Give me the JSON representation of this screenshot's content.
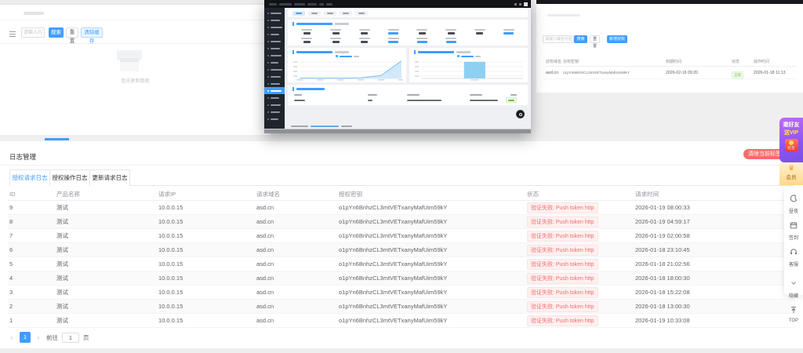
{
  "page": {
    "background": "#efefef",
    "accent": "#409eff",
    "danger": "#f56c6c",
    "success": "#67c23a"
  },
  "left_window": {
    "search_placeholder": "请输入内容",
    "search_button": "搜索",
    "reset_button": "重置",
    "clear_button": "清除缓存",
    "empty_text": "暂无更新数据"
  },
  "right_window": {
    "search_placeholder": "请输入域名内容",
    "search_button": "搜索",
    "reset_button": "重置",
    "add_button": "新增授权",
    "table": {
      "headers": [
        "授权域名",
        "授权密钥",
        "到期时间",
        "状态",
        "操作时间"
      ],
      "row": {
        "domain": "asd.cn",
        "key": "o1pYn6BnhzCL3mtVETxanyMafUim59kY",
        "expire_time": "2026-02-16 09:20",
        "status": "正常",
        "op_time": "2026-01-18 11:13"
      }
    }
  },
  "dashboard_window": {
    "skeleton": {
      "titlebar_bars": [
        10,
        16,
        14,
        12,
        6,
        8
      ],
      "sidebar_widths": [
        14,
        12,
        15,
        11,
        13,
        12,
        14,
        10,
        15,
        13,
        12,
        14,
        11,
        13,
        12,
        10
      ],
      "active_item": 11,
      "top_tabs": 5,
      "stat_cols_row1": 8,
      "stat_cols_row2": 6,
      "blue_row1": [
        3,
        7
      ],
      "blue_row2": [
        3,
        4,
        5
      ],
      "table_head_bars": [
        [
          2,
          10
        ],
        [
          96,
          12
        ],
        [
          146,
          16
        ],
        [
          226,
          16
        ],
        [
          278,
          8
        ]
      ],
      "table_row_bars": [
        [
          2,
          14
        ],
        [
          96,
          6
        ],
        [
          146,
          44
        ],
        [
          226,
          36
        ]
      ]
    },
    "chart_data": [
      {
        "type": "area",
        "points": 6,
        "values": [
          1,
          1,
          1,
          2,
          10,
          58
        ],
        "ylim": [
          0,
          60
        ],
        "line_color": "#74b9ee",
        "fill_color": "#d2e9fb",
        "grid": true,
        "legend_position": "top"
      },
      {
        "type": "bar",
        "values": [
          92
        ],
        "ylim": [
          0,
          100
        ],
        "bar_color": "#8ed0f2",
        "grid": true,
        "legend_position": "top"
      }
    ]
  },
  "log_panel": {
    "title": "日志管理",
    "close_button": "清除当前标签页",
    "tabs": [
      {
        "label": "授权请求日志",
        "active": true
      },
      {
        "label": "授权操作日志",
        "active": false
      },
      {
        "label": "更新请求日志",
        "active": false
      }
    ],
    "columns": [
      "ID",
      "产品名称",
      "请求IP",
      "请求域名",
      "授权密钥",
      "状态",
      "请求时间"
    ],
    "rows": [
      {
        "id": "9",
        "product": "测试",
        "ip": "10.0.0.15",
        "domain": "asd.cn",
        "key": "o1pYn6BnhzCL3mtVETxanyMafUim59kY",
        "status": "验证失败: Push token http",
        "time": "2026-01-19 08:00:33"
      },
      {
        "id": "8",
        "product": "测试",
        "ip": "10.0.0.15",
        "domain": "asd.cn",
        "key": "o1pYn6BnhzCL3mtVETxanyMafUim59kY",
        "status": "验证失败: Push token http",
        "time": "2026-01-19 04:59:17"
      },
      {
        "id": "7",
        "product": "测试",
        "ip": "10.0.0.15",
        "domain": "asd.cn",
        "key": "o1pYn6BnhzCL3mtVETxanyMafUim59kY",
        "status": "验证失败: Push token http",
        "time": "2026-01-19 02:00:58"
      },
      {
        "id": "6",
        "product": "测试",
        "ip": "10.0.0.15",
        "domain": "asd.cn",
        "key": "o1pYn6BnhzCL3mtVETxanyMafUim59kY",
        "status": "验证失败: Push token http",
        "time": "2026-01-18 23:10:45"
      },
      {
        "id": "5",
        "product": "测试",
        "ip": "10.0.0.15",
        "domain": "asd.cn",
        "key": "o1pYn6BnhzCL3mtVETxanyMafUim59kY",
        "status": "验证失败: Push token http",
        "time": "2026-01-18 21:02:56"
      },
      {
        "id": "4",
        "product": "测试",
        "ip": "10.0.0.15",
        "domain": "asd.cn",
        "key": "o1pYn6BnhzCL3mtVETxanyMafUim59kY",
        "status": "验证失败: Push token http",
        "time": "2026-01-18 18:00:30"
      },
      {
        "id": "3",
        "product": "测试",
        "ip": "10.0.0.15",
        "domain": "asd.cn",
        "key": "o1pYn6BnhzCL3mtVETxanyMafUim59kY",
        "status": "验证失败: Push token http",
        "time": "2026-01-18 15:22:08"
      },
      {
        "id": "2",
        "product": "测试",
        "ip": "10.0.0.15",
        "domain": "asd.cn",
        "key": "o1pYn6BnhzCL3mtVETxanyMafUim59kY",
        "status": "验证失败: Push token http",
        "time": "2026-01-18 13:00:30"
      },
      {
        "id": "1",
        "product": "测试",
        "ip": "10.0.0.15",
        "domain": "asd.cn",
        "key": "o1pYn6BnhzCL3mtVETxanyMafUim59kY",
        "status": "验证失败: Push token http",
        "time": "2026-01-19 10:33:08"
      }
    ],
    "pagination": {
      "prev": "‹",
      "current": "1",
      "next": "›",
      "goto_label": "前往",
      "goto_value": "1",
      "unit_label": "页"
    }
  },
  "float_widget": {
    "invite": {
      "line1": "邀好友",
      "line2": "送VIP",
      "packet_label": "红包"
    },
    "vip_label": "会员",
    "items": [
      {
        "icon": "moon-icon",
        "label": "昼夜"
      },
      {
        "icon": "calendar-icon",
        "label": "签到"
      },
      {
        "icon": "headset-icon",
        "label": "客服"
      },
      {
        "icon": "chevron-down-icon",
        "label": "隐藏"
      },
      {
        "icon": "top-icon",
        "label": "TOP"
      }
    ]
  }
}
